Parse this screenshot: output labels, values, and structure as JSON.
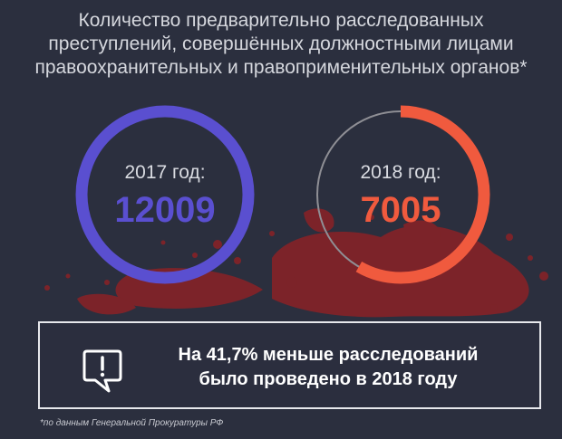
{
  "title_lines": [
    "Количество предварительно расследованных",
    "преступлений, совершённых должностными лицами",
    "правоохранительных и правоприменительных органов*"
  ],
  "chart_data": {
    "type": "donut",
    "title": "Количество предварительно расследованных преступлений, совершённых должностными лицами правоохранительных и правоприменительных органов*",
    "series": [
      {
        "name": "2017 год:",
        "value": 12009,
        "color": "#5a4fd0"
      },
      {
        "name": "2018 год:",
        "value": 7005,
        "color": "#f05a3e"
      }
    ],
    "reference_value": 12009,
    "track_color": "#8f8f95",
    "change_percent": -41.7
  },
  "callout": {
    "line1": "На 41,7% меньше расследований",
    "line2": "было проведено в 2018 году",
    "icon": "exclamation-speech-bubble-icon"
  },
  "footnote": "*по данным Генеральной Прокуратуры РФ",
  "colors": {
    "background": "#2b2f3e",
    "blood": "#8b2226"
  }
}
